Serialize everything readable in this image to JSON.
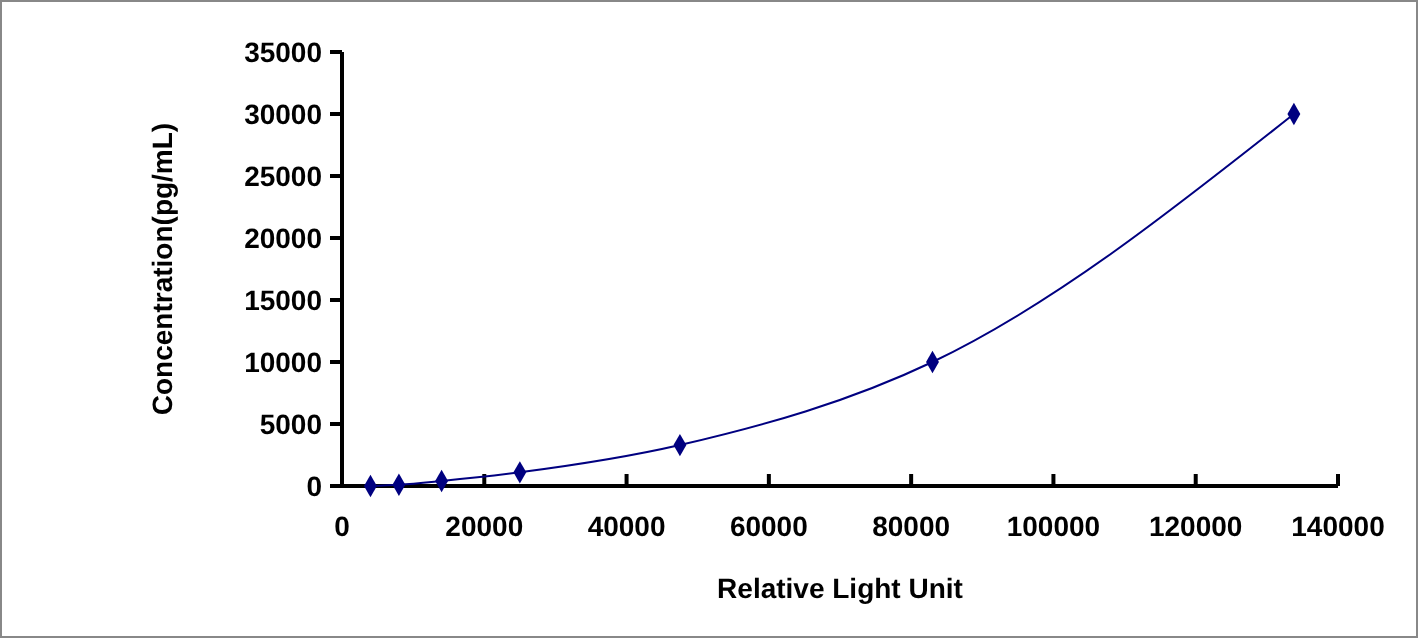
{
  "chart_data": {
    "type": "line",
    "xlabel": "Relative Light Unit",
    "ylabel": "Concentration(pg/mL)",
    "x": [
      4000,
      8000,
      14000,
      25000,
      47500,
      83000,
      133800
    ],
    "series": [
      {
        "color": "#000080",
        "values": [
          0,
          100,
          400,
          1100,
          3300,
          10000,
          30000
        ]
      }
    ],
    "xlim": [
      0,
      140000
    ],
    "xticks": [
      0,
      20000,
      40000,
      60000,
      80000,
      100000,
      120000,
      140000
    ],
    "ylim": [
      0,
      35000
    ],
    "yticks": [
      0,
      5000,
      10000,
      15000,
      20000,
      25000,
      30000,
      35000
    ],
    "grid": false,
    "marker": "diamond",
    "line_style": "solid"
  }
}
